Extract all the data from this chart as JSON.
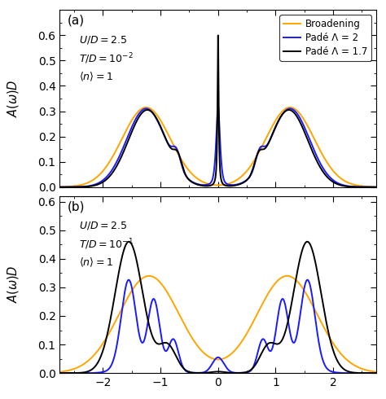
{
  "legend_labels": [
    "Broadening",
    "Padé Λ = 2",
    "Padé Λ = 1.7"
  ],
  "colors": [
    "#FFA500",
    "#1a1aFF",
    "#000000"
  ],
  "xlim": [
    -2.75,
    2.75
  ],
  "ylim_a": [
    0.0,
    0.7
  ],
  "ylim_b": [
    0.0,
    0.62
  ],
  "yticks_a": [
    0.0,
    0.1,
    0.2,
    0.3,
    0.4,
    0.5,
    0.6
  ],
  "yticks_b": [
    0.0,
    0.1,
    0.2,
    0.3,
    0.4,
    0.5,
    0.6
  ],
  "xticks": [
    -2,
    -1,
    0,
    1,
    2
  ],
  "ylabel": "$A(\\omega)D$"
}
